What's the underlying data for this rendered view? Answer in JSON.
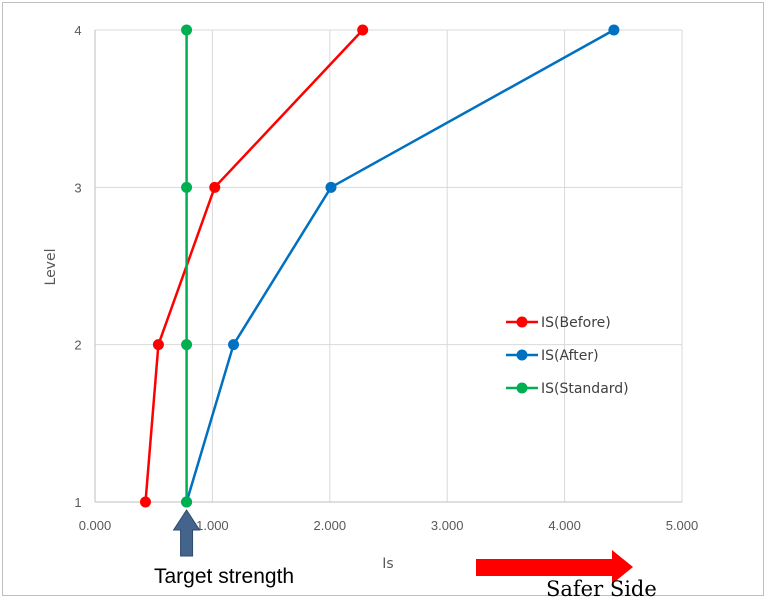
{
  "chart_data": {
    "type": "line",
    "xlabel": "Is",
    "ylabel": "Level",
    "xlim": [
      0,
      5
    ],
    "ylim": [
      1,
      4
    ],
    "x_ticks": [
      "0.000",
      "1.000",
      "2.000",
      "3.000",
      "4.000",
      "5.000"
    ],
    "y_ticks": [
      "1",
      "2",
      "3",
      "4"
    ],
    "grid": true,
    "legend_position": "right",
    "series": [
      {
        "name": "IS(Before)",
        "color": "#ff0000",
        "points": [
          [
            0.43,
            1
          ],
          [
            0.54,
            2
          ],
          [
            1.02,
            3
          ],
          [
            2.28,
            4
          ]
        ]
      },
      {
        "name": "IS(After)",
        "color": "#0070c0",
        "points": [
          [
            0.78,
            1
          ],
          [
            1.18,
            2
          ],
          [
            2.01,
            3
          ],
          [
            4.42,
            4
          ]
        ]
      },
      {
        "name": "IS(Standard)",
        "color": "#00b050",
        "points": [
          [
            0.78,
            1
          ],
          [
            0.78,
            2
          ],
          [
            0.78,
            3
          ],
          [
            0.78,
            4
          ]
        ]
      }
    ]
  },
  "annotations": {
    "target_label": "Target strength",
    "safer_label": "Safer Side",
    "target_arrow_color": "#44648c",
    "safer_arrow_color": "#ff0000"
  }
}
